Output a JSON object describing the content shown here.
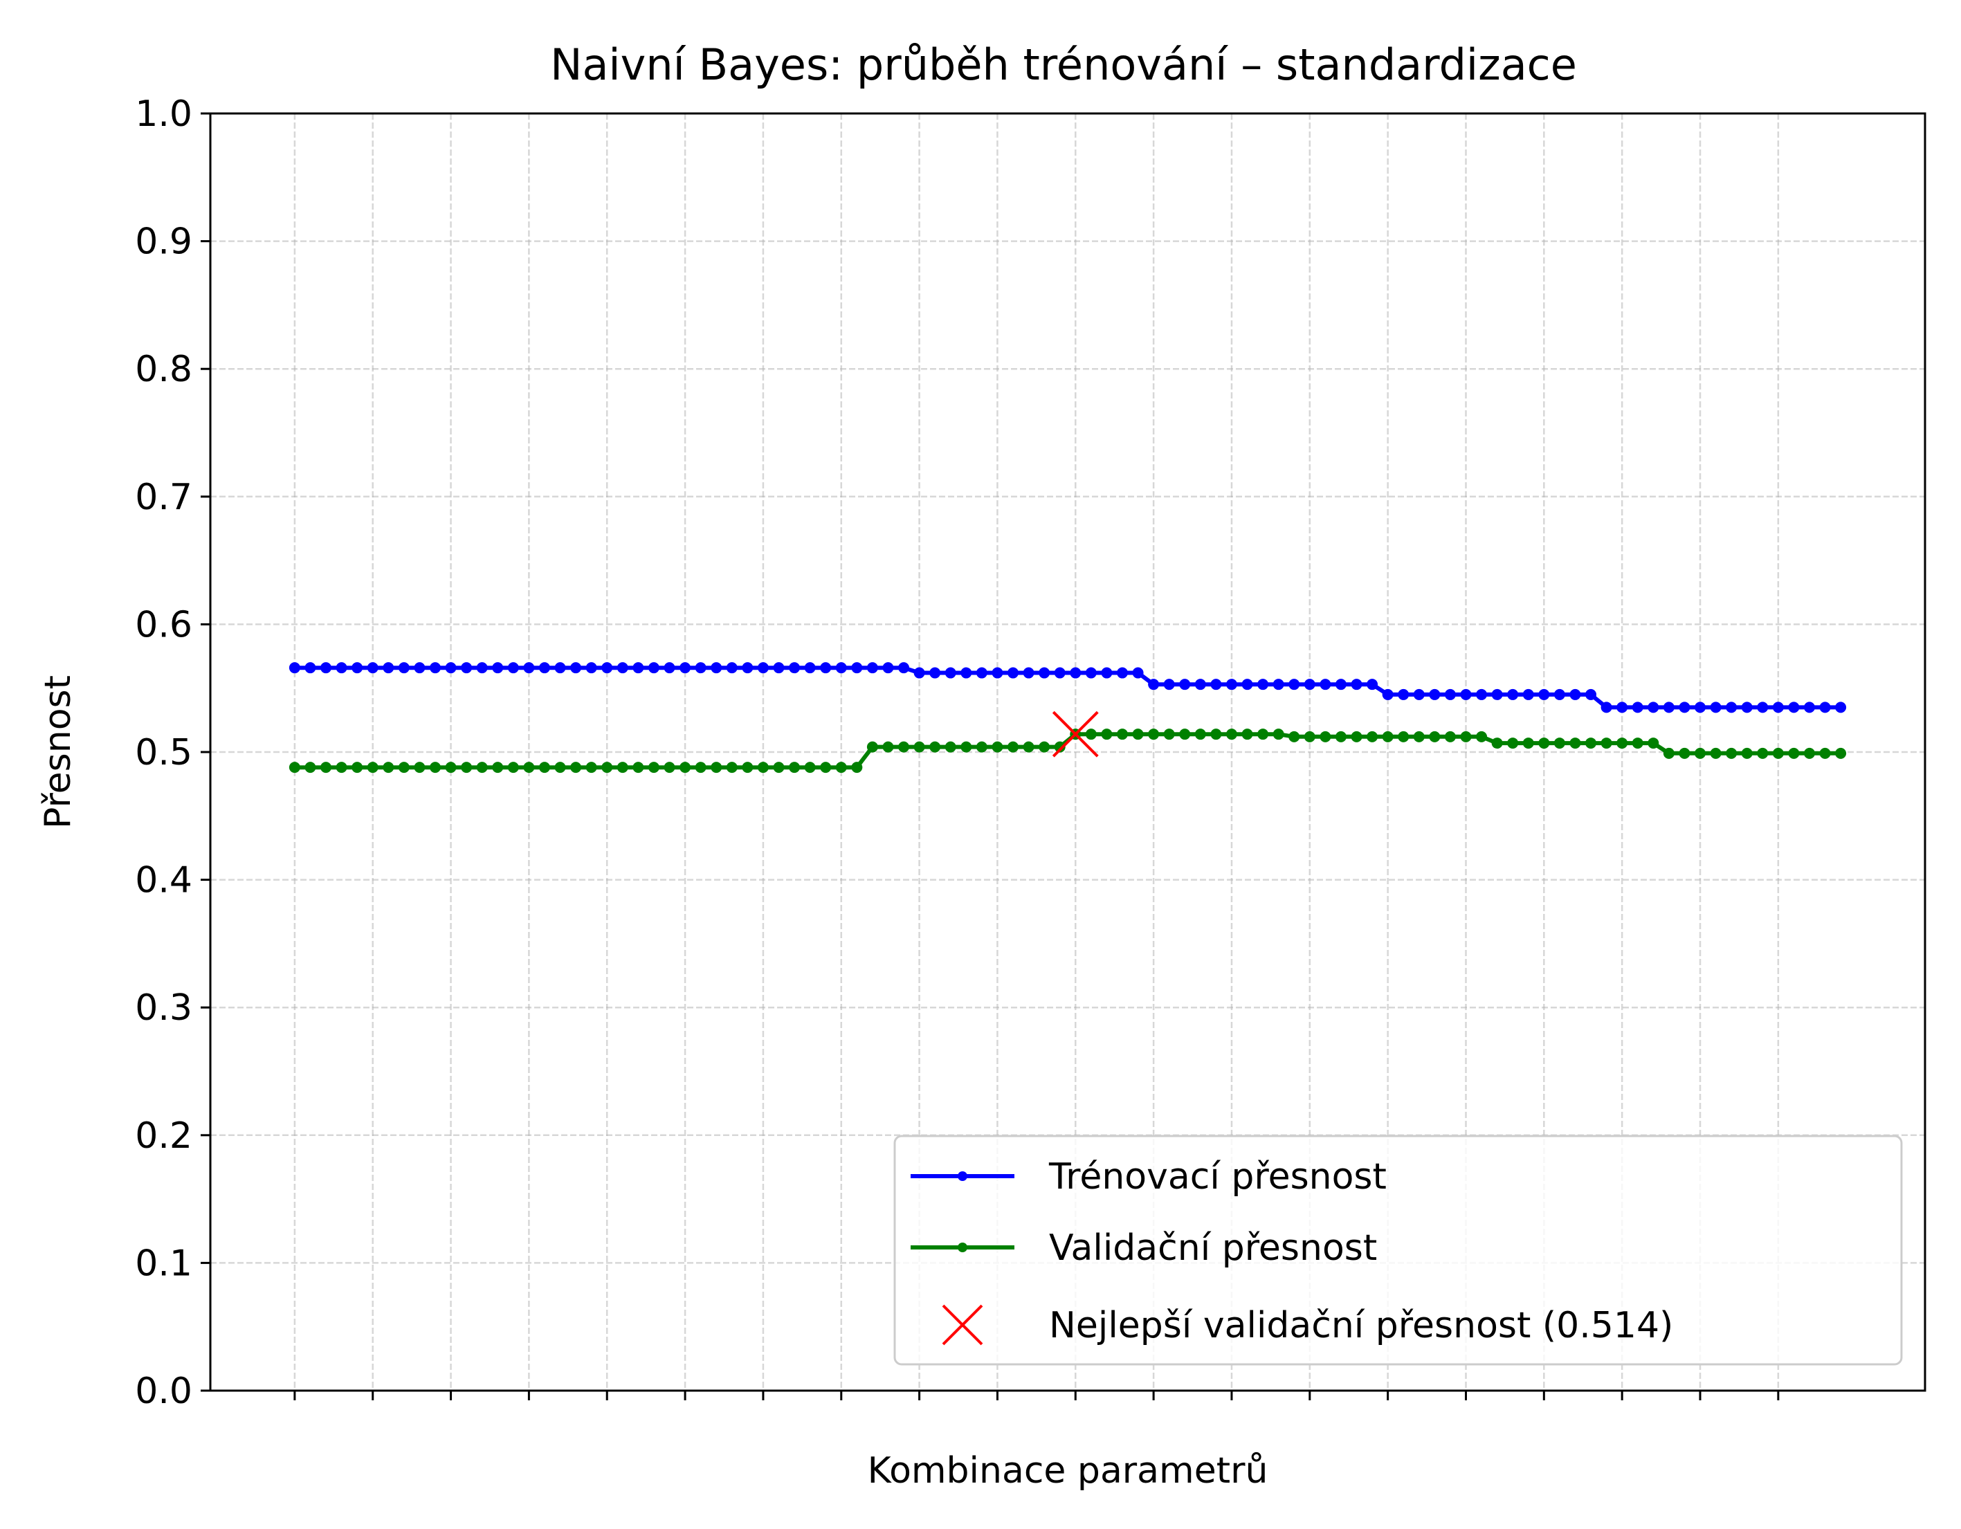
{
  "chart_data": {
    "type": "line",
    "title": "Naivní Bayes: průběh trénování – standardizace",
    "xlabel": "Kombinace parametrů",
    "ylabel": "Přesnost",
    "ylim": [
      0.0,
      1.0
    ],
    "xlim": [
      -5.4,
      104.4
    ],
    "x_tick_positions": [
      0,
      5,
      10,
      15,
      20,
      25,
      30,
      35,
      40,
      45,
      50,
      55,
      60,
      65,
      70,
      75,
      80,
      85,
      90,
      95
    ],
    "y_ticks": [
      "0.0",
      "0.1",
      "0.2",
      "0.3",
      "0.4",
      "0.5",
      "0.6",
      "0.7",
      "0.8",
      "0.9",
      "1.0"
    ],
    "grid": true,
    "legend_position": "lower-right",
    "series": [
      {
        "name": "Trénovací přesnost",
        "color": "#0000ff",
        "values": [
          0.566,
          0.566,
          0.566,
          0.566,
          0.566,
          0.566,
          0.566,
          0.566,
          0.566,
          0.566,
          0.566,
          0.566,
          0.566,
          0.566,
          0.566,
          0.566,
          0.566,
          0.566,
          0.566,
          0.566,
          0.566,
          0.566,
          0.566,
          0.566,
          0.566,
          0.566,
          0.566,
          0.566,
          0.566,
          0.566,
          0.566,
          0.566,
          0.566,
          0.566,
          0.566,
          0.566,
          0.566,
          0.566,
          0.566,
          0.566,
          0.562,
          0.562,
          0.562,
          0.562,
          0.562,
          0.562,
          0.562,
          0.562,
          0.562,
          0.562,
          0.562,
          0.562,
          0.562,
          0.562,
          0.562,
          0.553,
          0.553,
          0.553,
          0.553,
          0.553,
          0.553,
          0.553,
          0.553,
          0.553,
          0.553,
          0.553,
          0.553,
          0.553,
          0.553,
          0.553,
          0.545,
          0.545,
          0.545,
          0.545,
          0.545,
          0.545,
          0.545,
          0.545,
          0.545,
          0.545,
          0.545,
          0.545,
          0.545,
          0.545,
          0.535,
          0.535,
          0.535,
          0.535,
          0.535,
          0.535,
          0.535,
          0.535,
          0.535,
          0.535,
          0.535,
          0.535,
          0.535,
          0.535,
          0.535,
          0.535
        ]
      },
      {
        "name": "Validační přesnost",
        "color": "#008000",
        "values": [
          0.488,
          0.488,
          0.488,
          0.488,
          0.488,
          0.488,
          0.488,
          0.488,
          0.488,
          0.488,
          0.488,
          0.488,
          0.488,
          0.488,
          0.488,
          0.488,
          0.488,
          0.488,
          0.488,
          0.488,
          0.488,
          0.488,
          0.488,
          0.488,
          0.488,
          0.488,
          0.488,
          0.488,
          0.488,
          0.488,
          0.488,
          0.488,
          0.488,
          0.488,
          0.488,
          0.488,
          0.488,
          0.504,
          0.504,
          0.504,
          0.504,
          0.504,
          0.504,
          0.504,
          0.504,
          0.504,
          0.504,
          0.504,
          0.504,
          0.504,
          0.514,
          0.514,
          0.514,
          0.514,
          0.514,
          0.514,
          0.514,
          0.514,
          0.514,
          0.514,
          0.514,
          0.514,
          0.514,
          0.514,
          0.512,
          0.512,
          0.512,
          0.512,
          0.512,
          0.512,
          0.512,
          0.512,
          0.512,
          0.512,
          0.512,
          0.512,
          0.512,
          0.507,
          0.507,
          0.507,
          0.507,
          0.507,
          0.507,
          0.507,
          0.507,
          0.507,
          0.507,
          0.507,
          0.499,
          0.499,
          0.499,
          0.499,
          0.499,
          0.499,
          0.499,
          0.499,
          0.499,
          0.499,
          0.499,
          0.499
        ]
      }
    ],
    "best_point": {
      "name": "Nejlepší validační přesnost (0.514)",
      "x": 50,
      "y": 0.514,
      "color": "#ff0000"
    }
  }
}
